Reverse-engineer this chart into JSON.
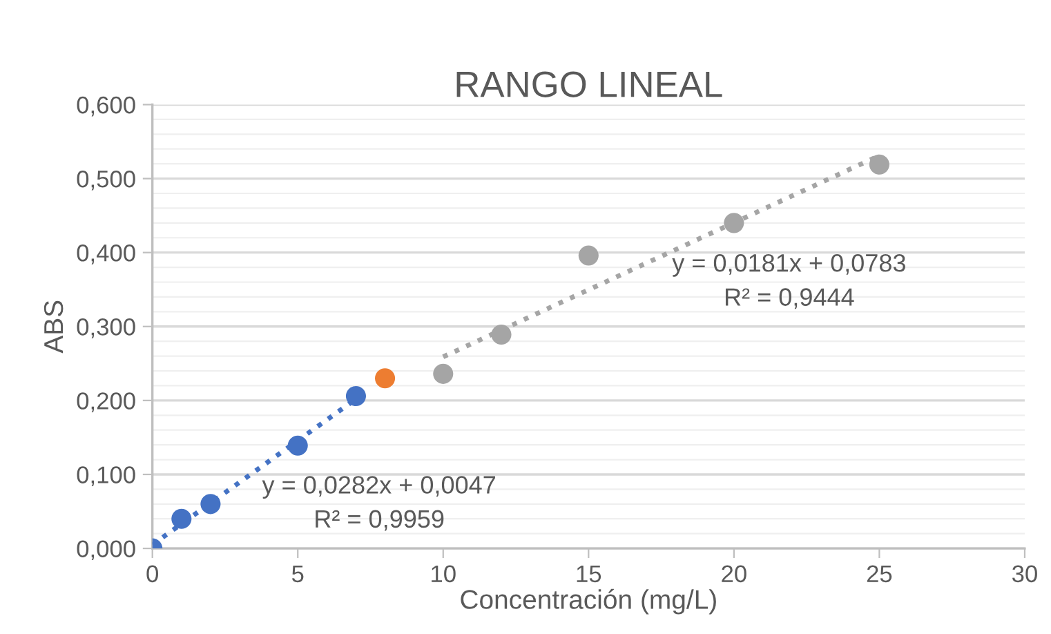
{
  "chart_data": {
    "type": "scatter",
    "title": "RANGO LINEAL",
    "xlabel": "Concentración (mg/L)",
    "ylabel": "ABS",
    "series": [
      {
        "color": "#4472c4",
        "x": [
          0,
          1,
          2,
          5,
          7
        ],
        "values": [
          0.0,
          0.04,
          0.06,
          0.139,
          0.206
        ]
      },
      {
        "color": "#ed7d31",
        "x": [
          8
        ],
        "values": [
          0.23
        ]
      },
      {
        "color": "#a5a5a5",
        "x": [
          10,
          12,
          15,
          20,
          25
        ],
        "values": [
          0.236,
          0.289,
          0.396,
          0.44,
          0.519
        ]
      },
      {
        "type": "line",
        "color": "#4472c4",
        "line_style": "dotted",
        "marker": "none",
        "x": [
          0,
          7
        ],
        "values": [
          0.005,
          0.202
        ]
      },
      {
        "type": "line",
        "color": "#a5a5a5",
        "line_style": "dotted",
        "marker": "none",
        "x": [
          10,
          25
        ],
        "values": [
          0.259,
          0.531
        ]
      }
    ],
    "annotations": [
      "y = 0,0282x + 0,0047\nR² = 0,9959",
      "y = 0,0181x + 0,0783\nR² = 0,9444"
    ],
    "xlim": [
      0,
      30
    ],
    "xticks": [
      0,
      5,
      10,
      15,
      20,
      25,
      30
    ],
    "ylim": [
      0,
      0.6
    ],
    "yticks": [
      {
        "value": 0,
        "label": "0,000"
      },
      {
        "value": 0.1,
        "label": "0,100"
      },
      {
        "value": 0.2,
        "label": "0,200"
      },
      {
        "value": 0.3,
        "label": "0,300"
      },
      {
        "value": 0.4,
        "label": "0,400"
      },
      {
        "value": 0.5,
        "label": "0,500"
      },
      {
        "value": 0.6,
        "label": "0,600"
      }
    ],
    "grid": "y",
    "marker": "circle"
  }
}
